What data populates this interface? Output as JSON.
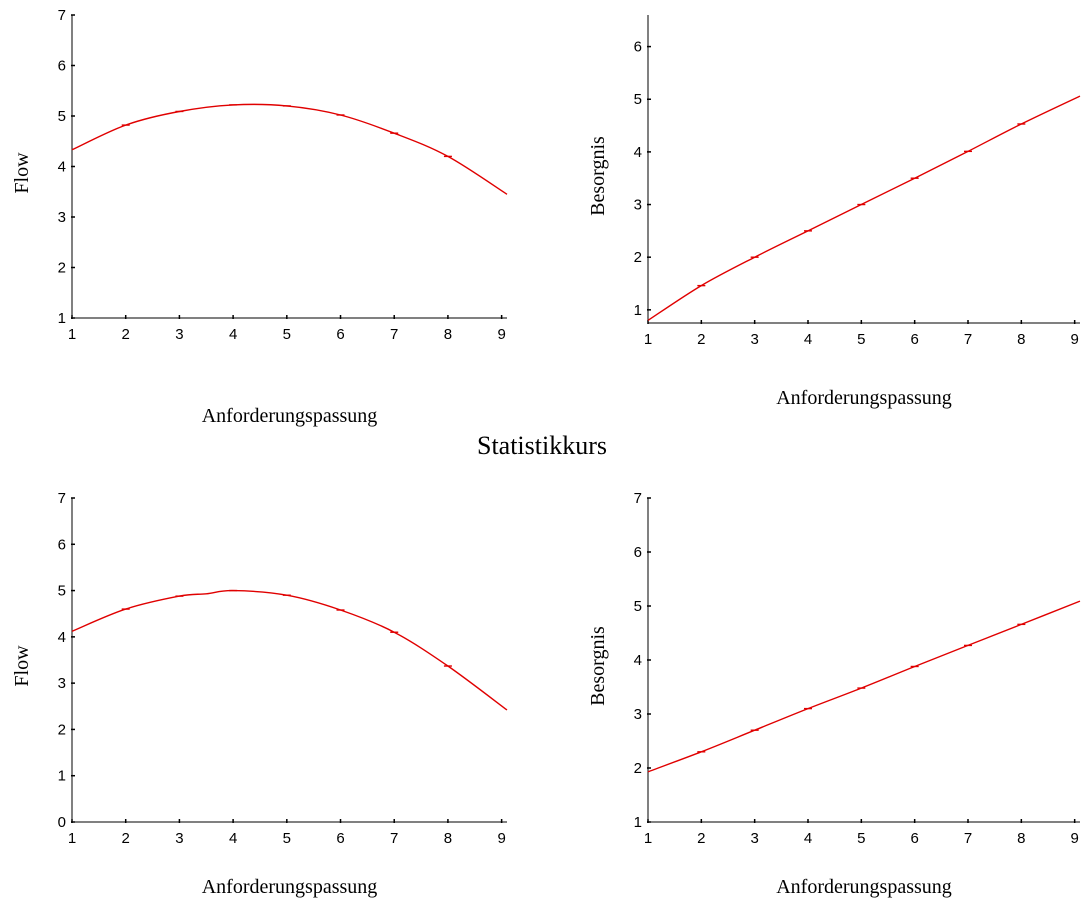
{
  "section_title": "Statistikkurs",
  "chart_data": [
    {
      "type": "line",
      "xlabel": "Anforderungspassung",
      "ylabel": "Flow",
      "xlim": [
        1,
        9.1
      ],
      "ylim": [
        1,
        7
      ],
      "xticks": [
        1,
        2,
        3,
        4,
        5,
        6,
        7,
        8,
        9
      ],
      "yticks": [
        1,
        2,
        3,
        4,
        5,
        6,
        7
      ],
      "x": [
        1,
        2,
        3,
        4,
        5,
        6,
        7,
        8,
        9.1
      ],
      "series": [
        {
          "values": [
            4.33,
            4.82,
            5.09,
            5.22,
            5.2,
            5.02,
            4.66,
            4.2,
            3.45
          ]
        }
      ],
      "grid": false,
      "line_color": "#e00000"
    },
    {
      "type": "line",
      "xlabel": "Anforderungspassung",
      "ylabel": "Besorgnis",
      "xlim": [
        1,
        9.1
      ],
      "ylim": [
        0.75,
        6.6
      ],
      "xticks": [
        1,
        2,
        3,
        4,
        5,
        6,
        7,
        8,
        9
      ],
      "yticks": [
        1,
        2,
        3,
        4,
        5,
        6
      ],
      "x": [
        1,
        2,
        3,
        4,
        5,
        6,
        7,
        8,
        9.1
      ],
      "series": [
        {
          "values": [
            0.8,
            1.46,
            2.0,
            2.5,
            3.0,
            3.5,
            4.01,
            4.53,
            5.06
          ]
        }
      ],
      "grid": false,
      "line_color": "#e00000"
    },
    {
      "type": "line",
      "xlabel": "Anforderungspassung",
      "ylabel": "Flow",
      "xlim": [
        1,
        9.1
      ],
      "ylim": [
        0,
        7
      ],
      "xticks": [
        1,
        2,
        3,
        4,
        5,
        6,
        7,
        8,
        9
      ],
      "yticks": [
        0,
        1,
        2,
        3,
        4,
        5,
        6,
        7
      ],
      "x": [
        1,
        2,
        3,
        3.5,
        4,
        5,
        6,
        7,
        8,
        9.1
      ],
      "series": [
        {
          "values": [
            4.12,
            4.6,
            4.88,
            4.93,
            5.0,
            4.9,
            4.58,
            4.1,
            3.37,
            2.42
          ]
        }
      ],
      "grid": false,
      "line_color": "#e00000"
    },
    {
      "type": "line",
      "xlabel": "Anforderungspassung",
      "ylabel": "Besorgnis",
      "xlim": [
        1,
        9.1
      ],
      "ylim": [
        1,
        7
      ],
      "xticks": [
        1,
        2,
        3,
        4,
        5,
        6,
        7,
        8,
        9
      ],
      "yticks": [
        1,
        2,
        3,
        4,
        5,
        6,
        7
      ],
      "x": [
        1,
        2,
        3,
        4,
        5,
        6,
        7,
        8,
        9.1
      ],
      "series": [
        {
          "values": [
            1.93,
            2.3,
            2.7,
            3.1,
            3.48,
            3.88,
            4.27,
            4.66,
            5.09
          ]
        }
      ],
      "grid": false,
      "line_color": "#e00000"
    }
  ]
}
